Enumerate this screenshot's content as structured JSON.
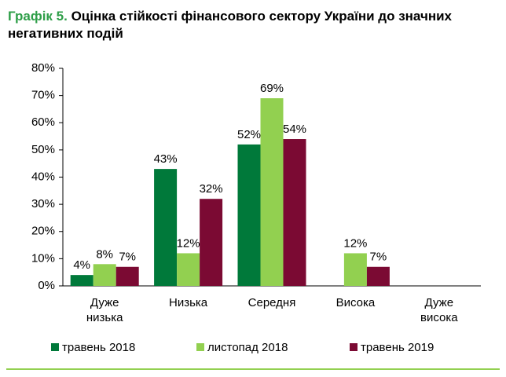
{
  "chart_data": {
    "type": "bar",
    "figure_label": "Графік 5.",
    "title": "Оцінка стійкості фінансового сектору України до значних негативних подій",
    "categories": [
      "Дуже низька",
      "Низька",
      "Середня",
      "Висока",
      "Дуже висока"
    ],
    "series": [
      {
        "name": "травень 2018",
        "color": "#00793a",
        "values": [
          4,
          43,
          52,
          null,
          null
        ],
        "value_labels": [
          "4%",
          "43%",
          "52%",
          null,
          null
        ]
      },
      {
        "name": "листопад 2018",
        "color": "#92d050",
        "values": [
          8,
          12,
          69,
          12,
          null
        ],
        "value_labels": [
          "8%",
          "12%",
          "69%",
          "12%",
          null
        ]
      },
      {
        "name": "травень 2019",
        "color": "#7b0a33",
        "values": [
          7,
          32,
          54,
          7,
          null
        ],
        "value_labels": [
          "7%",
          "32%",
          "54%",
          "7%",
          null
        ]
      }
    ],
    "ylim": [
      0,
      80
    ],
    "yticks": [
      {
        "value": 0,
        "label": "0%"
      },
      {
        "value": 10,
        "label": "10%"
      },
      {
        "value": 20,
        "label": "20%"
      },
      {
        "value": 30,
        "label": "30%"
      },
      {
        "value": 40,
        "label": "40%"
      },
      {
        "value": 50,
        "label": "50%"
      },
      {
        "value": 60,
        "label": "60%"
      },
      {
        "value": 70,
        "label": "70%"
      },
      {
        "value": 80,
        "label": "80%"
      }
    ],
    "grid": false,
    "legend": "bottom"
  }
}
